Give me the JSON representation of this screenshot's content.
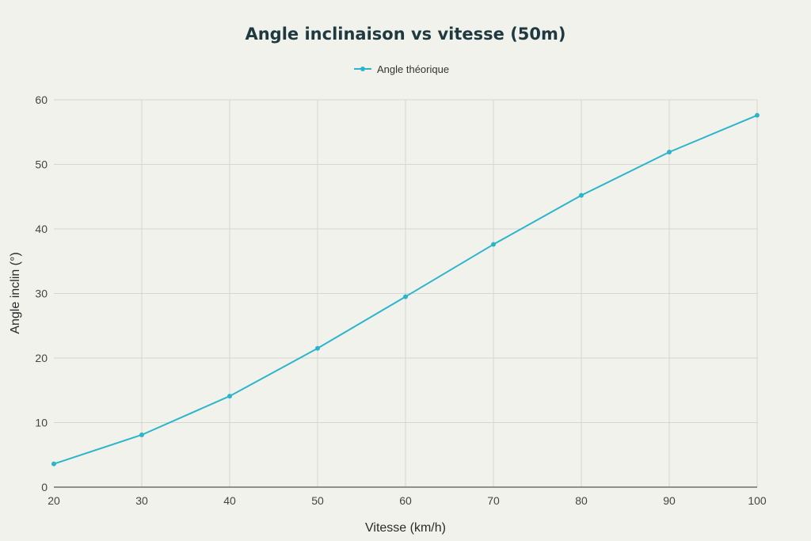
{
  "chart_data": {
    "type": "line",
    "title": "Angle inclinaison vs vitesse (50m)",
    "xlabel": "Vitesse (km/h)",
    "ylabel": "Angle inclin (°)",
    "xlim": [
      20,
      100
    ],
    "ylim": [
      0,
      60
    ],
    "xticks": [
      20,
      30,
      40,
      50,
      60,
      70,
      80,
      90,
      100
    ],
    "yticks": [
      0,
      10,
      20,
      30,
      40,
      50,
      60
    ],
    "grid": true,
    "legend_position": "top-center",
    "series": [
      {
        "name": "Angle théorique",
        "color": "#2bb5cc",
        "x": [
          20,
          30,
          40,
          50,
          60,
          70,
          80,
          90,
          100
        ],
        "y": [
          3.6,
          8.1,
          14.1,
          21.5,
          29.5,
          37.6,
          45.2,
          51.9,
          57.6
        ]
      }
    ]
  }
}
